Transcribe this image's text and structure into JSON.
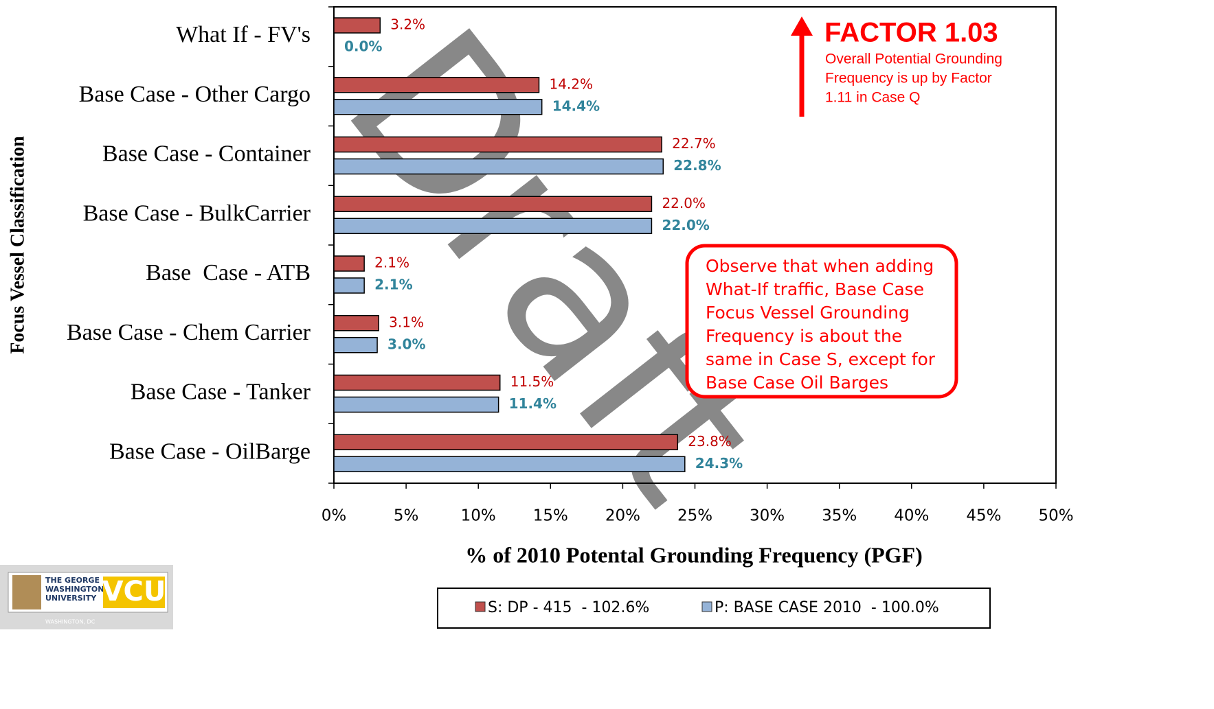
{
  "chart_data": {
    "type": "hbar",
    "y_axis_label": "Focus Vessel Classification",
    "x_axis_label": "% of 2010 Potental Grounding Frequency (PGF)",
    "categories": [
      "What If - FV's",
      "Base Case - Other Cargo",
      "Base Case - Container",
      "Base Case - BulkCarrier",
      "Base  Case - ATB",
      "Base Case - Chem Carrier",
      "Base Case - Tanker",
      "Base Case - OilBarge"
    ],
    "series": [
      {
        "name": "S: DP - 415  - 102.6%",
        "color": "#c0504d",
        "label_color": "#c00000",
        "values": [
          3.2,
          14.2,
          22.7,
          22.0,
          2.1,
          3.1,
          11.5,
          23.8
        ],
        "value_labels": [
          "3.2%",
          "14.2%",
          "22.7%",
          "22.0%",
          "2.1%",
          "3.1%",
          "11.5%",
          "23.8%"
        ]
      },
      {
        "name": "P: BASE CASE 2010  - 100.0%",
        "color": "#95b3d7",
        "label_color": "#31849b",
        "values": [
          0.0,
          14.4,
          22.8,
          22.0,
          2.1,
          3.0,
          11.4,
          24.3
        ],
        "value_labels": [
          "0.0%",
          "14.4%",
          "22.8%",
          "22.0%",
          "2.1%",
          "3.0%",
          "11.4%",
          "24.3%"
        ]
      }
    ],
    "xlim": [
      0,
      50
    ],
    "xticks": [
      {
        "value": 0,
        "label": "0%"
      },
      {
        "value": 5,
        "label": "5%"
      },
      {
        "value": 10,
        "label": "10%"
      },
      {
        "value": 15,
        "label": "15%"
      },
      {
        "value": 20,
        "label": "20%"
      },
      {
        "value": 25,
        "label": "25%"
      },
      {
        "value": 30,
        "label": "30%"
      },
      {
        "value": 35,
        "label": "35%"
      },
      {
        "value": 40,
        "label": "40%"
      },
      {
        "value": 45,
        "label": "45%"
      },
      {
        "value": 50,
        "label": "50%"
      }
    ],
    "grid": false,
    "legend": "bottom",
    "annotations": {
      "factor_title": "FACTOR 1.03",
      "factor_note": [
        "Overall Potential Grounding",
        "Frequency is up by Factor",
        "1.11 in Case Q"
      ],
      "callout": [
        "Observe that when adding",
        "What-If traffic, Base Case",
        "Focus Vessel Grounding",
        "Frequency is about the",
        "same in Case S, except for",
        "Base Case Oil Barges"
      ],
      "watermark": "Draft"
    }
  },
  "logo": {
    "university": [
      "THE GEORGE",
      "WASHINGTON",
      "UNIVERSITY"
    ],
    "place": "WASHINGTON, DC",
    "mark": "VCU"
  }
}
